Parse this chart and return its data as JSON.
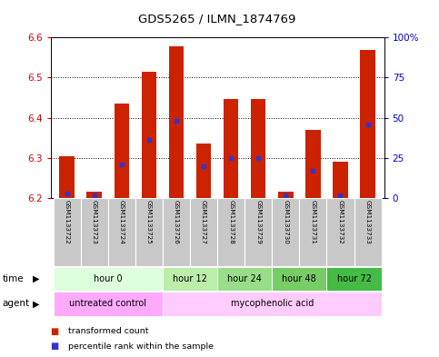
{
  "title": "GDS5265 / ILMN_1874769",
  "samples": [
    "GSM1133722",
    "GSM1133723",
    "GSM1133724",
    "GSM1133725",
    "GSM1133726",
    "GSM1133727",
    "GSM1133728",
    "GSM1133729",
    "GSM1133730",
    "GSM1133731",
    "GSM1133732",
    "GSM1133733"
  ],
  "bar_tops": [
    6.305,
    6.215,
    6.435,
    6.515,
    6.578,
    6.335,
    6.447,
    6.447,
    6.215,
    6.37,
    6.29,
    6.568
  ],
  "percentile_values": [
    3,
    2,
    21,
    36,
    48,
    20,
    25,
    25,
    2,
    17,
    2,
    46
  ],
  "bar_bottom": 6.2,
  "ylim": [
    6.2,
    6.6
  ],
  "y2lim": [
    0,
    100
  ],
  "yticks": [
    6.2,
    6.3,
    6.4,
    6.5,
    6.6
  ],
  "y2ticks": [
    0,
    25,
    50,
    75,
    100
  ],
  "y2ticklabels": [
    "0",
    "25",
    "50",
    "75",
    "100%"
  ],
  "bar_color": "#cc2200",
  "percentile_color": "#3333cc",
  "bar_width": 0.55,
  "time_groups": [
    {
      "label": "hour 0",
      "start": 0,
      "end": 3,
      "color": "#ddffdd"
    },
    {
      "label": "hour 12",
      "start": 4,
      "end": 5,
      "color": "#bbeeaa"
    },
    {
      "label": "hour 24",
      "start": 6,
      "end": 7,
      "color": "#99dd88"
    },
    {
      "label": "hour 48",
      "start": 8,
      "end": 9,
      "color": "#77cc66"
    },
    {
      "label": "hour 72",
      "start": 10,
      "end": 11,
      "color": "#44bb44"
    }
  ],
  "agent_groups": [
    {
      "label": "untreated control",
      "start": 0,
      "end": 3,
      "color": "#ffaaff"
    },
    {
      "label": "mycophenolic acid",
      "start": 4,
      "end": 11,
      "color": "#ffccff"
    }
  ],
  "legend_items": [
    {
      "label": "transformed count",
      "color": "#cc2200"
    },
    {
      "label": "percentile rank within the sample",
      "color": "#3333cc"
    }
  ],
  "left_axis_color": "#cc0000",
  "right_axis_color": "#0000cc",
  "sample_bg_color": "#c8c8c8",
  "sample_text_color": "#000000"
}
